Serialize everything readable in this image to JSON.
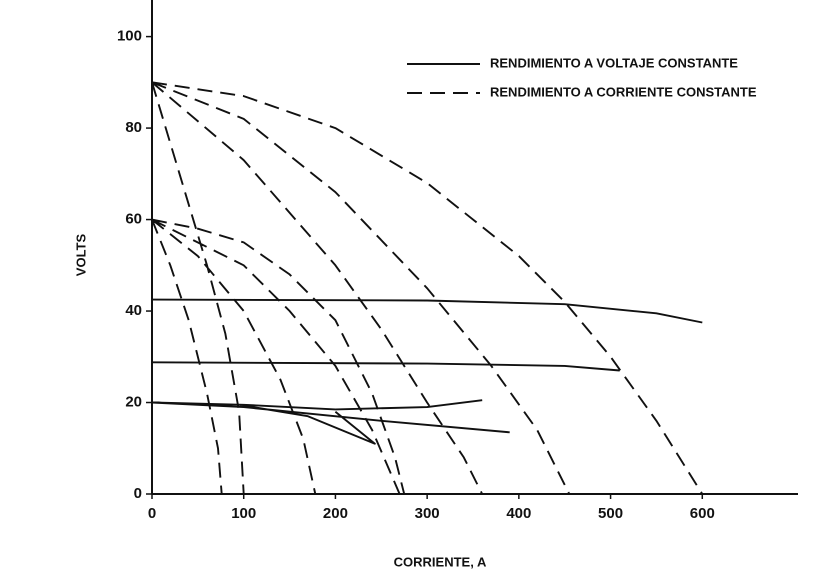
{
  "chart_data": {
    "type": "line",
    "xlabel": "CORRIENTE, A",
    "ylabel": "VOLTS",
    "xlim": [
      0,
      700
    ],
    "ylim": [
      0,
      108
    ],
    "xticks": [
      0,
      100,
      200,
      300,
      400,
      500,
      600
    ],
    "yticks": [
      0,
      20,
      40,
      60,
      80,
      100
    ],
    "grid": false,
    "legend": "upper right",
    "series": [
      {
        "name": "RENDIMIENTO A VOLTAJE CONSTANTE",
        "color": "#111111",
        "dashed": false,
        "x": [
          0,
          300,
          450,
          550,
          600,
          null,
          0,
          300,
          450,
          510,
          null,
          0,
          100,
          200,
          300,
          360,
          null,
          0,
          100,
          250,
          390,
          null,
          95,
          170,
          243,
          200
        ],
        "values": [
          42.5,
          42.3,
          41.5,
          39.5,
          37.5,
          null,
          28.8,
          28.5,
          28,
          27,
          null,
          20,
          19.5,
          18.5,
          19,
          20.5,
          null,
          20,
          19,
          16,
          13.5,
          null,
          19.5,
          17,
          11,
          18
        ]
      },
      {
        "name": "RENDIMIENTO A CORRIENTE CONSTANTE",
        "color": "#111111",
        "dashed": true,
        "x": [
          0,
          100,
          200,
          300,
          400,
          450,
          500,
          550,
          600,
          null,
          0,
          100,
          200,
          300,
          370,
          420,
          455,
          null,
          0,
          100,
          200,
          250,
          300,
          340,
          360,
          null,
          0,
          30,
          60,
          80,
          95,
          100,
          null,
          0,
          50,
          100,
          150,
          200,
          240,
          265,
          275,
          null,
          0,
          100,
          150,
          200,
          240,
          270,
          null,
          0,
          50,
          100,
          140,
          165,
          178,
          null,
          0,
          20,
          40,
          60,
          72,
          76
        ],
        "values": [
          90,
          87,
          80,
          68,
          52,
          42,
          30,
          16,
          0,
          null,
          90,
          82,
          66,
          45,
          28,
          14,
          0,
          null,
          90,
          73,
          50,
          36,
          20,
          8,
          0,
          null,
          90,
          70,
          50,
          35,
          18,
          0,
          null,
          60,
          58,
          55,
          48,
          38,
          22,
          8,
          0,
          null,
          60,
          50,
          40,
          28,
          14,
          0,
          null,
          60,
          52,
          40,
          25,
          12,
          0,
          null,
          60,
          50,
          38,
          22,
          10,
          0
        ]
      }
    ]
  }
}
